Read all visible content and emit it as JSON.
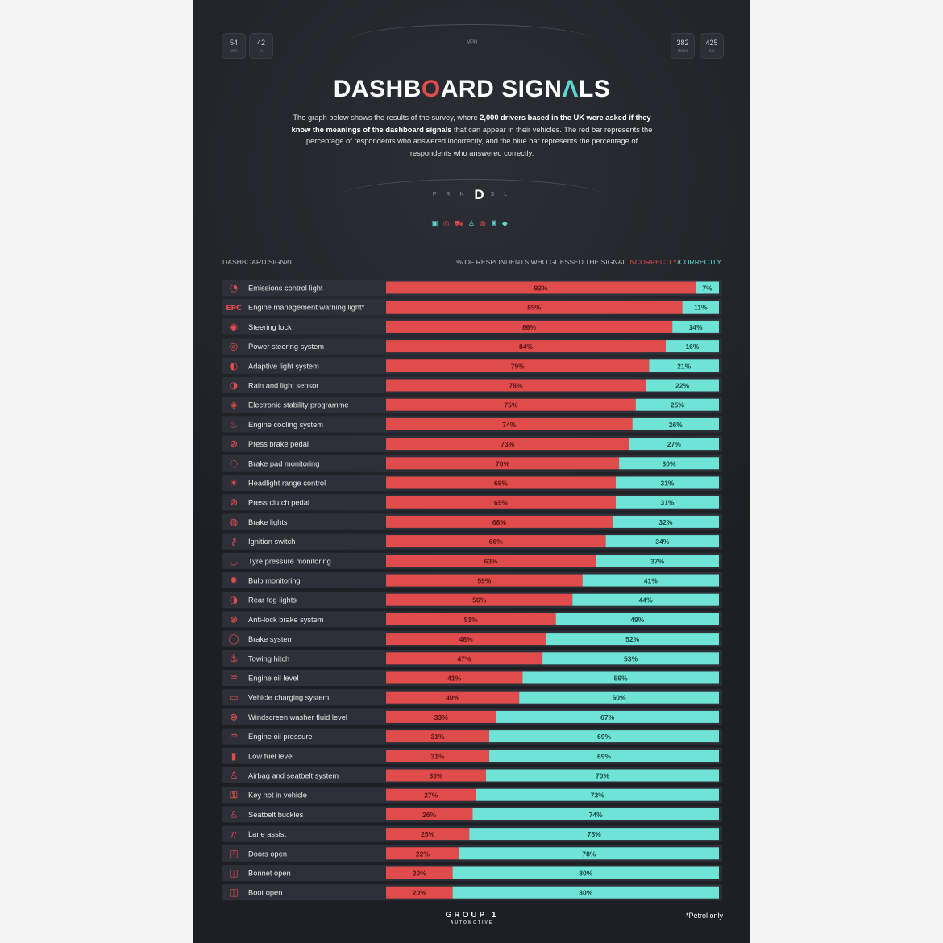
{
  "dashboard": {
    "gauges_left": [
      {
        "value": "54",
        "unit": "MPG"
      },
      {
        "value": "42",
        "unit": "°C"
      }
    ],
    "gauges_right": [
      {
        "value": "382",
        "unit": "MILES"
      },
      {
        "value": "425",
        "unit": "KM"
      }
    ],
    "speed_unit": "MPH",
    "gear_left": "P R N",
    "gear_current": "D",
    "gear_right": "S L"
  },
  "title": {
    "part1": "DASHB",
    "accent_o": "O",
    "part2": "ARD SIGN",
    "accent_a": "Λ",
    "part3": "LS"
  },
  "intro": {
    "t1": "The graph below shows the results of the survey, where ",
    "b1": "2,000 drivers based in the UK were asked if they know the meanings of the dashboard signals",
    "t2": " that can appear in their vehicles. The red bar represents the percentage of respondents who answered incorrectly, and the blue bar represents the percentage of respondents who answered correctly."
  },
  "header": {
    "left": "DASHBOARD SIGNAL",
    "right_prefix": "% OF RESPONDENTS WHO GUESSED THE SIGNAL ",
    "right_incorrect": "INCORRECTLY",
    "right_sep": "/",
    "right_correct": "CORRECTLY"
  },
  "colors": {
    "incorrect": "#e04b4b",
    "correct": "#6fe3d6",
    "row_bg": "#2d3038",
    "background": "#1d1f24"
  },
  "chart_data": {
    "type": "bar",
    "orientation": "horizontal",
    "stacked": true,
    "categories": [
      "Emissions control light",
      "Engine management warning light*",
      "Steering lock",
      "Power steering system",
      "Adaptive light system",
      "Rain and light sensor",
      "Electronic stability programme",
      "Engine cooling system",
      "Press brake pedal",
      "Brake pad monitoring",
      "Headlight range control",
      "Press clutch pedal",
      "Brake lights",
      "Ignition switch",
      "Tyre pressure monitoring",
      "Bulb monitoring",
      "Rear fog lights",
      "Anti-lock brake system",
      "Brake system",
      "Towing hitch",
      "Engine oil level",
      "Vehicle charging system",
      "Windscreen washer fluid level",
      "Engine oil pressure",
      "Low fuel level",
      "Airbag and seatbelt system",
      "Key not in vehicle",
      "Seatbelt buckles",
      "Lane assist",
      "Doors open",
      "Bonnet open",
      "Boot open"
    ],
    "series": [
      {
        "name": "INCORRECTLY",
        "values": [
          93,
          89,
          86,
          84,
          79,
          78,
          75,
          74,
          73,
          70,
          69,
          69,
          68,
          66,
          63,
          59,
          56,
          51,
          48,
          47,
          41,
          40,
          33,
          31,
          31,
          30,
          27,
          26,
          25,
          22,
          20,
          20
        ]
      },
      {
        "name": "CORRECTLY",
        "values": [
          7,
          11,
          14,
          16,
          21,
          22,
          25,
          26,
          27,
          30,
          31,
          31,
          32,
          34,
          37,
          41,
          44,
          49,
          52,
          53,
          59,
          60,
          67,
          69,
          69,
          70,
          73,
          74,
          75,
          78,
          80,
          80
        ]
      }
    ],
    "value_suffix": "%",
    "xlim": [
      0,
      100
    ],
    "grid": false,
    "legend": "top-right"
  },
  "footer": {
    "logo": "GROUP 1",
    "logo_sub": "AUTOMOTIVE",
    "footnote": "*Petrol only"
  }
}
